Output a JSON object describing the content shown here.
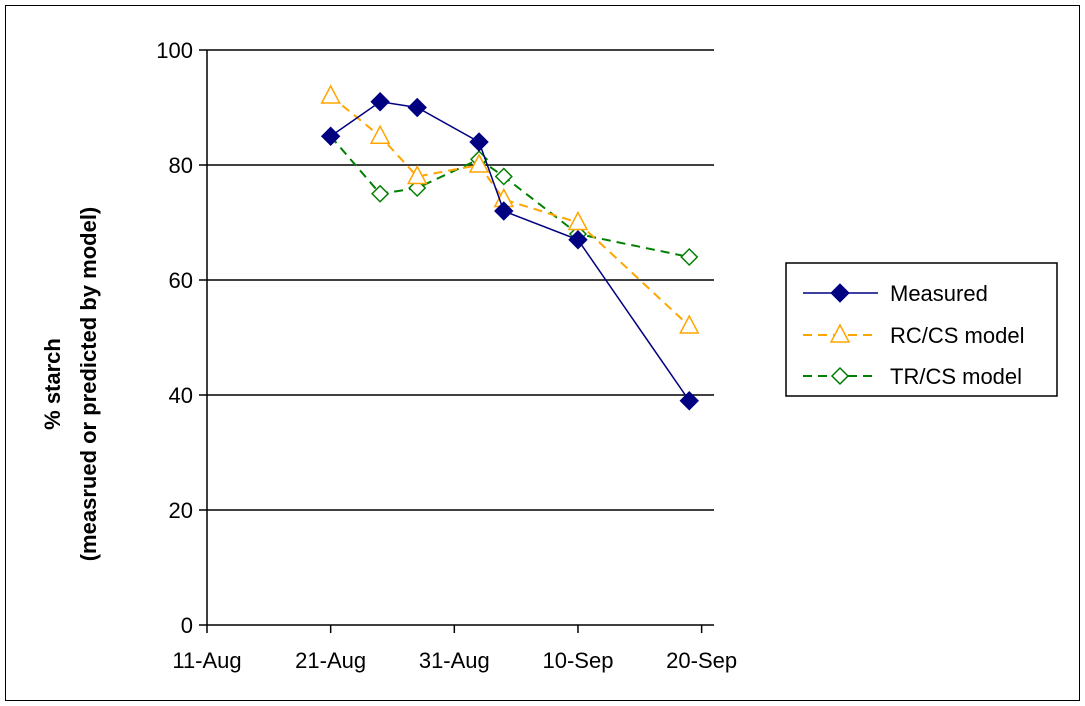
{
  "chart_data": {
    "type": "line",
    "title": "",
    "xlabel": "",
    "ylabel": [
      "% starch",
      "(measrued or predicted by model)"
    ],
    "x_tick_labels": [
      "11-Aug",
      "21-Aug",
      "31-Aug",
      "10-Sep",
      "20-Sep"
    ],
    "x_tick_dates": [
      "2000-08-11",
      "2000-08-21",
      "2000-08-31",
      "2000-09-10",
      "2000-09-20"
    ],
    "xlim": [
      "2000-08-11",
      "2000-09-21"
    ],
    "ylim": [
      0,
      100
    ],
    "y_ticks": [
      0,
      20,
      40,
      60,
      80,
      100
    ],
    "grid": "horizontal",
    "legend_position": "right",
    "series": [
      {
        "name": "Measured",
        "color": "#000080",
        "line_style": "solid",
        "marker": "filled-diamond",
        "points": [
          {
            "x": "2000-08-21",
            "y": 85
          },
          {
            "x": "2000-08-25",
            "y": 91
          },
          {
            "x": "2000-08-28",
            "y": 90
          },
          {
            "x": "2000-09-02",
            "y": 84
          },
          {
            "x": "2000-09-04",
            "y": 72
          },
          {
            "x": "2000-09-10",
            "y": 67
          },
          {
            "x": "2000-09-19",
            "y": 39
          }
        ]
      },
      {
        "name": "RC/CS model",
        "color": "#FFA500",
        "line_style": "dashed",
        "marker": "open-triangle",
        "points": [
          {
            "x": "2000-08-21",
            "y": 92
          },
          {
            "x": "2000-08-25",
            "y": 85
          },
          {
            "x": "2000-08-28",
            "y": 78
          },
          {
            "x": "2000-09-02",
            "y": 80
          },
          {
            "x": "2000-09-04",
            "y": 74
          },
          {
            "x": "2000-09-10",
            "y": 70
          },
          {
            "x": "2000-09-19",
            "y": 52
          }
        ]
      },
      {
        "name": "TR/CS model",
        "color": "#008000",
        "line_style": "dashed",
        "marker": "open-diamond",
        "points": [
          {
            "x": "2000-08-21",
            "y": 85
          },
          {
            "x": "2000-08-25",
            "y": 75
          },
          {
            "x": "2000-08-28",
            "y": 76
          },
          {
            "x": "2000-09-02",
            "y": 81
          },
          {
            "x": "2000-09-04",
            "y": 78
          },
          {
            "x": "2000-09-10",
            "y": 68
          },
          {
            "x": "2000-09-19",
            "y": 64
          }
        ]
      }
    ]
  }
}
